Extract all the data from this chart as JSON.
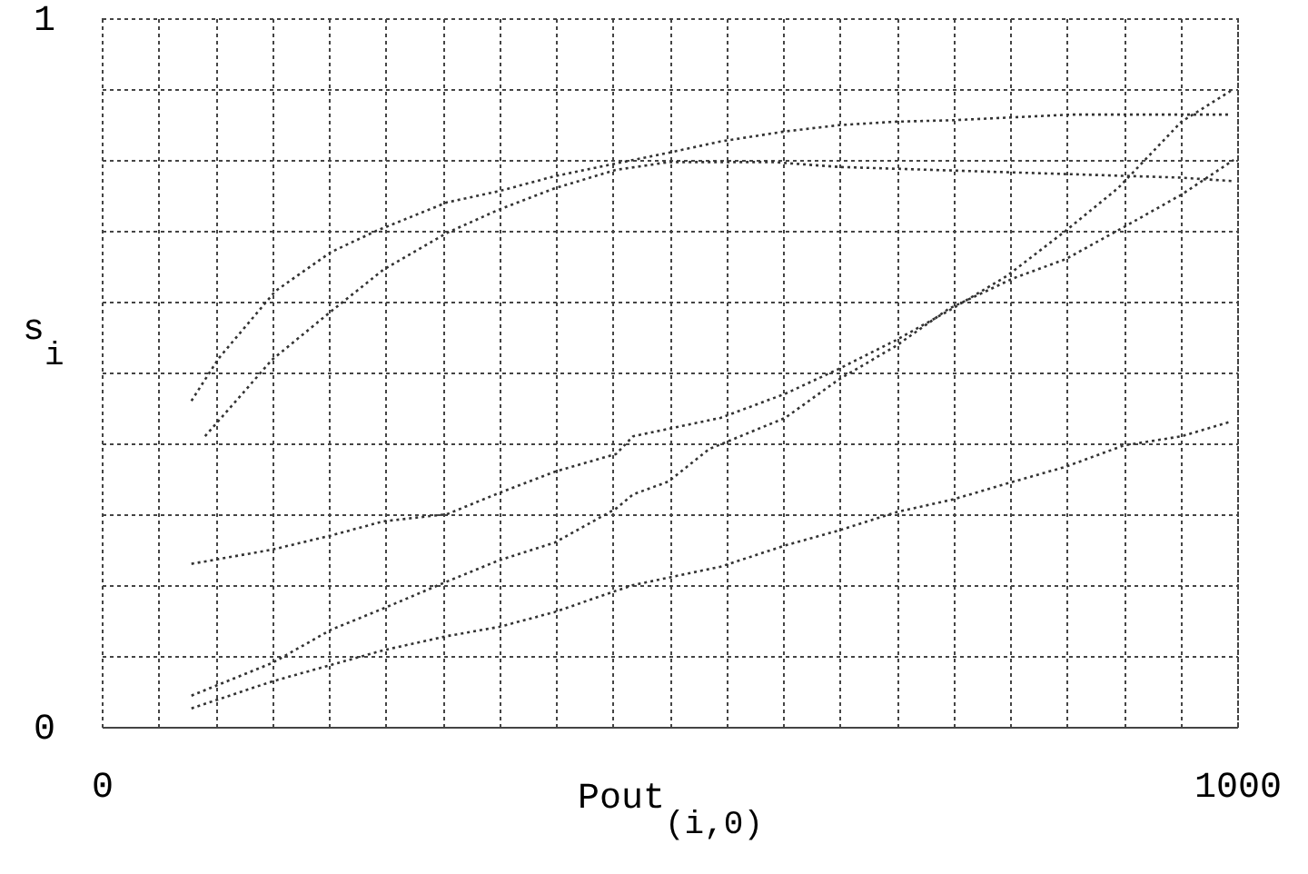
{
  "chart_data": {
    "type": "line",
    "xlabel": "Pout$_{(i,0)}$",
    "ylabel": "s$_{i}$",
    "xlim": [
      0,
      1000
    ],
    "ylim": [
      0,
      1
    ],
    "xticks": [
      0,
      {
        "value": 50,
        "label": null
      },
      {
        "value": 100,
        "label": null
      },
      {
        "value": 150,
        "label": null
      },
      {
        "value": 200,
        "label": null
      },
      {
        "value": 250,
        "label": null
      },
      {
        "value": 300,
        "label": null
      },
      {
        "value": 350,
        "label": null
      },
      {
        "value": 400,
        "label": null
      },
      {
        "value": 450,
        "label": null
      },
      {
        "value": 500,
        "label": null
      },
      {
        "value": 550,
        "label": null
      },
      {
        "value": 600,
        "label": null
      },
      {
        "value": 650,
        "label": null
      },
      {
        "value": 700,
        "label": null
      },
      {
        "value": 750,
        "label": null
      },
      {
        "value": 800,
        "label": null
      },
      {
        "value": 850,
        "label": null
      },
      {
        "value": 900,
        "label": null
      },
      {
        "value": 950,
        "label": null
      },
      1000
    ],
    "yticks": [
      0,
      {
        "value": 0.1,
        "label": null
      },
      {
        "value": 0.2,
        "label": null
      },
      {
        "value": 0.3,
        "label": null
      },
      {
        "value": 0.4,
        "label": null
      },
      {
        "value": 0.5,
        "label": null
      },
      {
        "value": 0.6,
        "label": null
      },
      {
        "value": 0.7,
        "label": null
      },
      {
        "value": 0.8,
        "label": null
      },
      {
        "value": 0.9,
        "label": null
      },
      1
    ],
    "grid": true,
    "line_style": "dotted",
    "series": [
      {
        "color": "#333333",
        "x": [
          79,
          103,
          153,
          202,
          242,
          304,
          350,
          399,
          453,
          499,
          545,
          601,
          649,
          700,
          750,
          854,
          992
        ],
        "values": [
          0.46,
          0.52,
          0.615,
          0.67,
          0.7,
          0.74,
          0.756,
          0.777,
          0.795,
          0.81,
          0.826,
          0.84,
          0.849,
          0.854,
          0.856,
          0.864,
          0.864
        ]
      },
      {
        "color": "#333333",
        "x": [
          91,
          150,
          201,
          248,
          304,
          350,
          399,
          453,
          500,
          590,
          650,
          750,
          850,
          950,
          997
        ],
        "values": [
          0.41,
          0.518,
          0.585,
          0.645,
          0.697,
          0.73,
          0.76,
          0.786,
          0.797,
          0.797,
          0.79,
          0.785,
          0.78,
          0.775,
          0.77
        ]
      },
      {
        "color": "#333333",
        "x": [
          79,
          150,
          202,
          248,
          304,
          350,
          399,
          453,
          468,
          499,
          535,
          602,
          649,
          700,
          746,
          803,
          849,
          900,
          951,
          997
        ],
        "values": [
          0.044,
          0.09,
          0.137,
          0.167,
          0.205,
          0.235,
          0.26,
          0.308,
          0.328,
          0.346,
          0.392,
          0.436,
          0.49,
          0.538,
          0.59,
          0.633,
          0.66,
          0.705,
          0.751,
          0.8
        ]
      },
      {
        "color": "#333333",
        "x": [
          79,
          150,
          248,
          304,
          350,
          399,
          453,
          468,
          545,
          602,
          649,
          700,
          750,
          803,
          849,
          900,
          951,
          993
        ],
        "values": [
          0.026,
          0.064,
          0.108,
          0.128,
          0.141,
          0.162,
          0.192,
          0.2,
          0.226,
          0.256,
          0.277,
          0.303,
          0.321,
          0.346,
          0.367,
          0.397,
          0.41,
          0.43
        ]
      },
      {
        "color": "#333333",
        "x": [
          79,
          150,
          202,
          248,
          304,
          350,
          399,
          453,
          468,
          545,
          602,
          649,
          700,
          749,
          797,
          849,
          895,
          951,
          997
        ],
        "values": [
          0.23,
          0.25,
          0.27,
          0.29,
          0.3,
          0.33,
          0.36,
          0.385,
          0.41,
          0.436,
          0.47,
          0.505,
          0.546,
          0.59,
          0.636,
          0.7,
          0.76,
          0.854,
          0.9
        ]
      }
    ]
  }
}
